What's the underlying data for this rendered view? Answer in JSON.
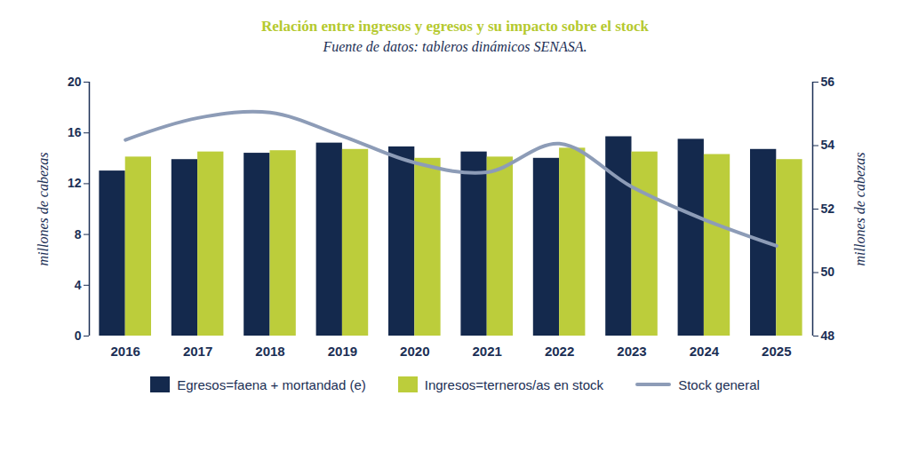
{
  "chart_data": {
    "type": "bar",
    "title": "Relación entre ingresos y egresos  y su impacto sobre el stock",
    "subtitle": "Fuente de datos: tableros dinámicos SENASA.",
    "categories": [
      "2016",
      "2017",
      "2018",
      "2019",
      "2020",
      "2021",
      "2022",
      "2023",
      "2024",
      "2025"
    ],
    "y_label": "millones de cabezas",
    "y2_label": "millones de cabezas",
    "ylim": [
      0,
      20
    ],
    "yticks": [
      0,
      4,
      8,
      12,
      16,
      20
    ],
    "y2lim": [
      48,
      56
    ],
    "y2ticks": [
      48,
      50,
      52,
      54,
      56
    ],
    "grid": false,
    "legend": "bottom",
    "series": [
      {
        "name": "Egresos=faena + mortandad (e)",
        "color": "#14294d",
        "values": [
          13.0,
          13.9,
          14.4,
          15.2,
          14.9,
          14.5,
          14.0,
          15.7,
          15.5,
          14.7
        ]
      },
      {
        "name": "Ingresos=terneros/as en stock",
        "color": "#bccd3b",
        "values": [
          14.1,
          14.5,
          14.6,
          14.7,
          14.0,
          14.1,
          14.8,
          14.5,
          14.3,
          13.9
        ]
      },
      {
        "name": "Stock general",
        "type": "line",
        "axis": "y2",
        "color": "#8d9cb7",
        "line_style": "solid",
        "values": [
          54.18,
          54.87,
          55.04,
          54.3,
          53.46,
          53.16,
          54.06,
          52.7,
          51.67,
          50.84
        ]
      }
    ]
  }
}
